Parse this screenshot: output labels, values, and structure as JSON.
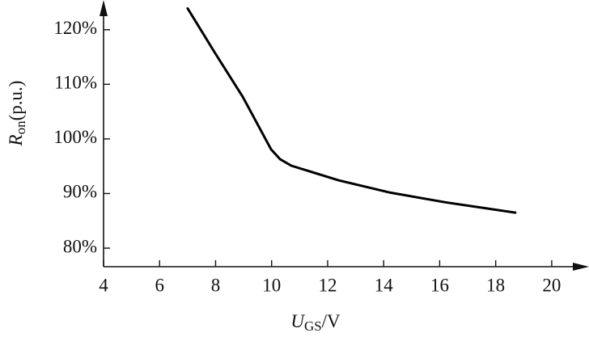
{
  "chart_data": {
    "type": "line",
    "x_label": {
      "symbol": "U",
      "subscript": "GS",
      "unit": "/V"
    },
    "y_label": {
      "symbol": "R",
      "subscript": "on",
      "unit": "(p.u.)"
    },
    "x": [
      7.0,
      7.96,
      8.97,
      9.98,
      10.3,
      10.7,
      12.4,
      14.2,
      16.2,
      18.7
    ],
    "values": [
      123.9,
      115.9,
      107.7,
      98.1,
      96.3,
      95.1,
      92.4,
      90.2,
      88.4,
      86.5
    ],
    "color": "#000000",
    "xlim": [
      4,
      21.1
    ],
    "ylim": [
      76.6,
      124.7
    ],
    "xticks": [
      4,
      6,
      8,
      10,
      12,
      14,
      16,
      18,
      20
    ],
    "yticks": [
      {
        "value": 80,
        "label": "80%"
      },
      {
        "value": 90,
        "label": "90%"
      },
      {
        "value": 100,
        "label": "100%"
      },
      {
        "value": 110,
        "label": "110%"
      },
      {
        "value": 120,
        "label": "120%"
      }
    ],
    "grid": false
  }
}
